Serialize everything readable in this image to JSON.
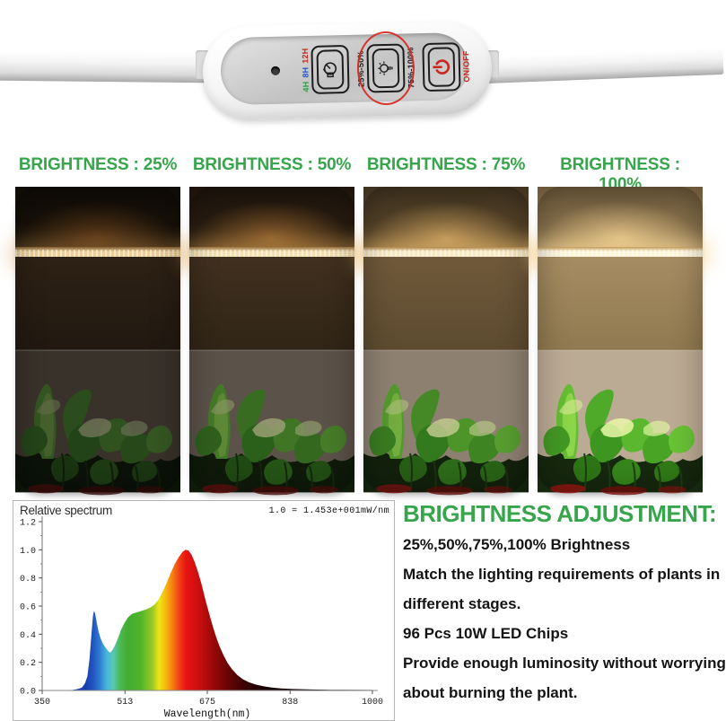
{
  "accent_green": "#36a54c",
  "controller": {
    "buttons": {
      "timer": {
        "labels": [
          {
            "text": "4H",
            "color": "#2e9e44"
          },
          {
            "text": "8H",
            "color": "#2456c4"
          },
          {
            "text": "12H",
            "color": "#c9271e"
          }
        ],
        "icon": "timer-clock-icon"
      },
      "brightness": {
        "left_label": "25%-50%",
        "right_label": "75%-100%",
        "icon": "bulb-icon",
        "ring_color": "#d3281f"
      },
      "power": {
        "label": "ON/OFF",
        "color": "#c9271e",
        "icon": "power-icon"
      }
    }
  },
  "brightness_panels": [
    {
      "label": "BRIGHTNESS : 25%",
      "level": "25%"
    },
    {
      "label": "BRIGHTNESS : 50%",
      "level": "50%"
    },
    {
      "label": "BRIGHTNESS : 75%",
      "level": "75%"
    },
    {
      "label": "BRIGHTNESS : 100%",
      "level": "100%"
    }
  ],
  "chart_data": {
    "type": "area",
    "title": "Relative spectrum",
    "annotation": "1.0 = 1.453e+001mW/nm",
    "xlabel": "Wavelength(nm)",
    "ylabel": "",
    "xlim": [
      350,
      1000
    ],
    "ylim": [
      0,
      1.2
    ],
    "xticks": [
      350,
      513,
      675,
      838,
      1000
    ],
    "yticks": [
      0.0,
      0.2,
      0.4,
      0.6,
      0.8,
      1.0,
      1.2
    ],
    "grid": false,
    "legend": "none",
    "fill": "wavelength-rainbow-gradient",
    "peaks": [
      {
        "wavelength_nm": 452,
        "value": 0.57,
        "color": "blue"
      },
      {
        "wavelength_nm": 632,
        "value": 1.0,
        "color": "red"
      }
    ],
    "points": [
      [
        350,
        0
      ],
      [
        395,
        0.002
      ],
      [
        410,
        0.004
      ],
      [
        420,
        0.01
      ],
      [
        428,
        0.02
      ],
      [
        434,
        0.05
      ],
      [
        439,
        0.1
      ],
      [
        443,
        0.22
      ],
      [
        447,
        0.4
      ],
      [
        450,
        0.53
      ],
      [
        452,
        0.565
      ],
      [
        454,
        0.55
      ],
      [
        457,
        0.49
      ],
      [
        461,
        0.42
      ],
      [
        465,
        0.37
      ],
      [
        470,
        0.33
      ],
      [
        476,
        0.3
      ],
      [
        481,
        0.275
      ],
      [
        484,
        0.27
      ],
      [
        488,
        0.285
      ],
      [
        493,
        0.32
      ],
      [
        499,
        0.37
      ],
      [
        505,
        0.43
      ],
      [
        512,
        0.48
      ],
      [
        519,
        0.52
      ],
      [
        527,
        0.545
      ],
      [
        536,
        0.555
      ],
      [
        545,
        0.565
      ],
      [
        554,
        0.575
      ],
      [
        563,
        0.59
      ],
      [
        571,
        0.61
      ],
      [
        579,
        0.645
      ],
      [
        587,
        0.7
      ],
      [
        595,
        0.765
      ],
      [
        603,
        0.835
      ],
      [
        611,
        0.9
      ],
      [
        619,
        0.95
      ],
      [
        626,
        0.985
      ],
      [
        632,
        1.0
      ],
      [
        638,
        0.995
      ],
      [
        644,
        0.965
      ],
      [
        650,
        0.915
      ],
      [
        657,
        0.84
      ],
      [
        664,
        0.75
      ],
      [
        671,
        0.65
      ],
      [
        678,
        0.555
      ],
      [
        685,
        0.465
      ],
      [
        692,
        0.385
      ],
      [
        699,
        0.315
      ],
      [
        707,
        0.25
      ],
      [
        715,
        0.195
      ],
      [
        724,
        0.15
      ],
      [
        734,
        0.11
      ],
      [
        745,
        0.08
      ],
      [
        757,
        0.058
      ],
      [
        770,
        0.042
      ],
      [
        785,
        0.03
      ],
      [
        800,
        0.022
      ],
      [
        820,
        0.015
      ],
      [
        845,
        0.01
      ],
      [
        880,
        0.007
      ],
      [
        920,
        0.005
      ],
      [
        1000,
        0.004
      ]
    ]
  },
  "info": {
    "title": "BRIGHTNESS ADJUSTMENT:",
    "lines": [
      "25%,50%,75%,100% Brightness",
      "Match the lighting requirements of plants in",
      "different stages.",
      "96 Pcs 10W LED Chips",
      "Provide enough luminosity without worrying",
      "about burning the plant."
    ]
  }
}
